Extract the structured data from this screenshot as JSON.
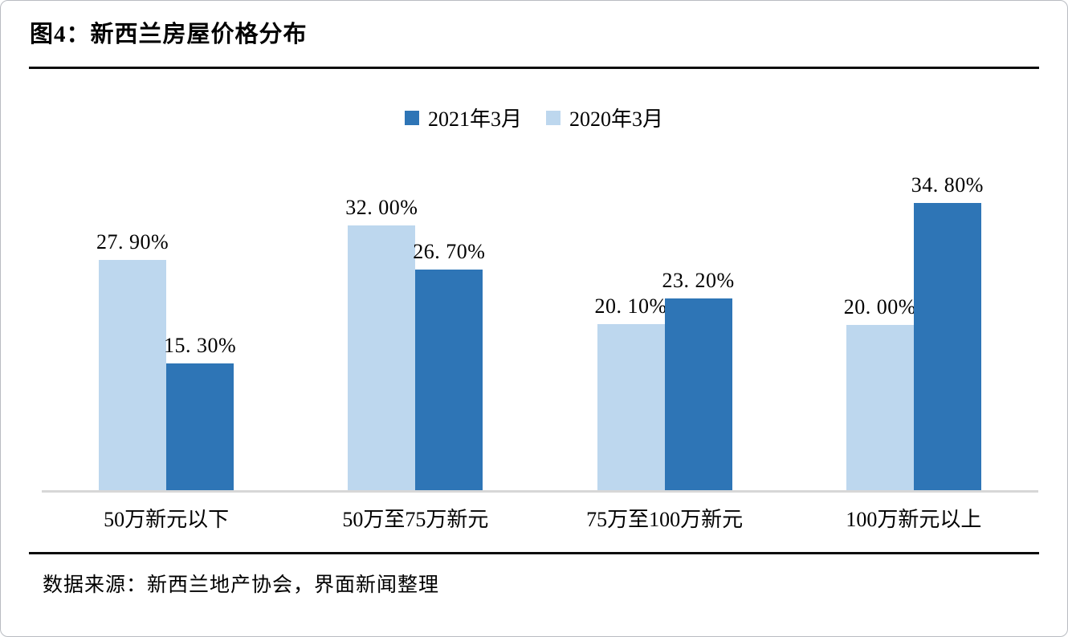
{
  "page": {
    "title": "图4：新西兰房屋价格分布",
    "source": "数据来源：新西兰地产协会，界面新闻整理"
  },
  "legend": {
    "items": [
      {
        "label": "2021年3月",
        "color": "#2E75B6"
      },
      {
        "label": "2020年3月",
        "color": "#BDD7EE"
      }
    ]
  },
  "chart_data": {
    "type": "bar",
    "title": "新西兰房屋价格分布",
    "categories": [
      "50万新元以下",
      "50万至75万新元",
      "75万至100万新元",
      "100万新元以上"
    ],
    "series": [
      {
        "name": "2020年3月",
        "color": "#BDD7EE",
        "values": [
          27.9,
          32.0,
          20.1,
          20.0
        ],
        "labels": [
          "27. 90%",
          "32. 00%",
          "20. 10%",
          "20. 00%"
        ]
      },
      {
        "name": "2021年3月",
        "color": "#2E75B6",
        "values": [
          15.3,
          26.7,
          23.2,
          34.8
        ],
        "labels": [
          "15. 30%",
          "26. 70%",
          "23. 20%",
          "34. 80%"
        ]
      }
    ],
    "unit": "percent",
    "ylim": [
      0,
      40
    ],
    "grid": false,
    "y_axis_visible": false,
    "legend_position": "top-center",
    "bar_order_in_group": [
      "2020年3月",
      "2021年3月"
    ],
    "baseline_color": "#D7D7D7"
  }
}
